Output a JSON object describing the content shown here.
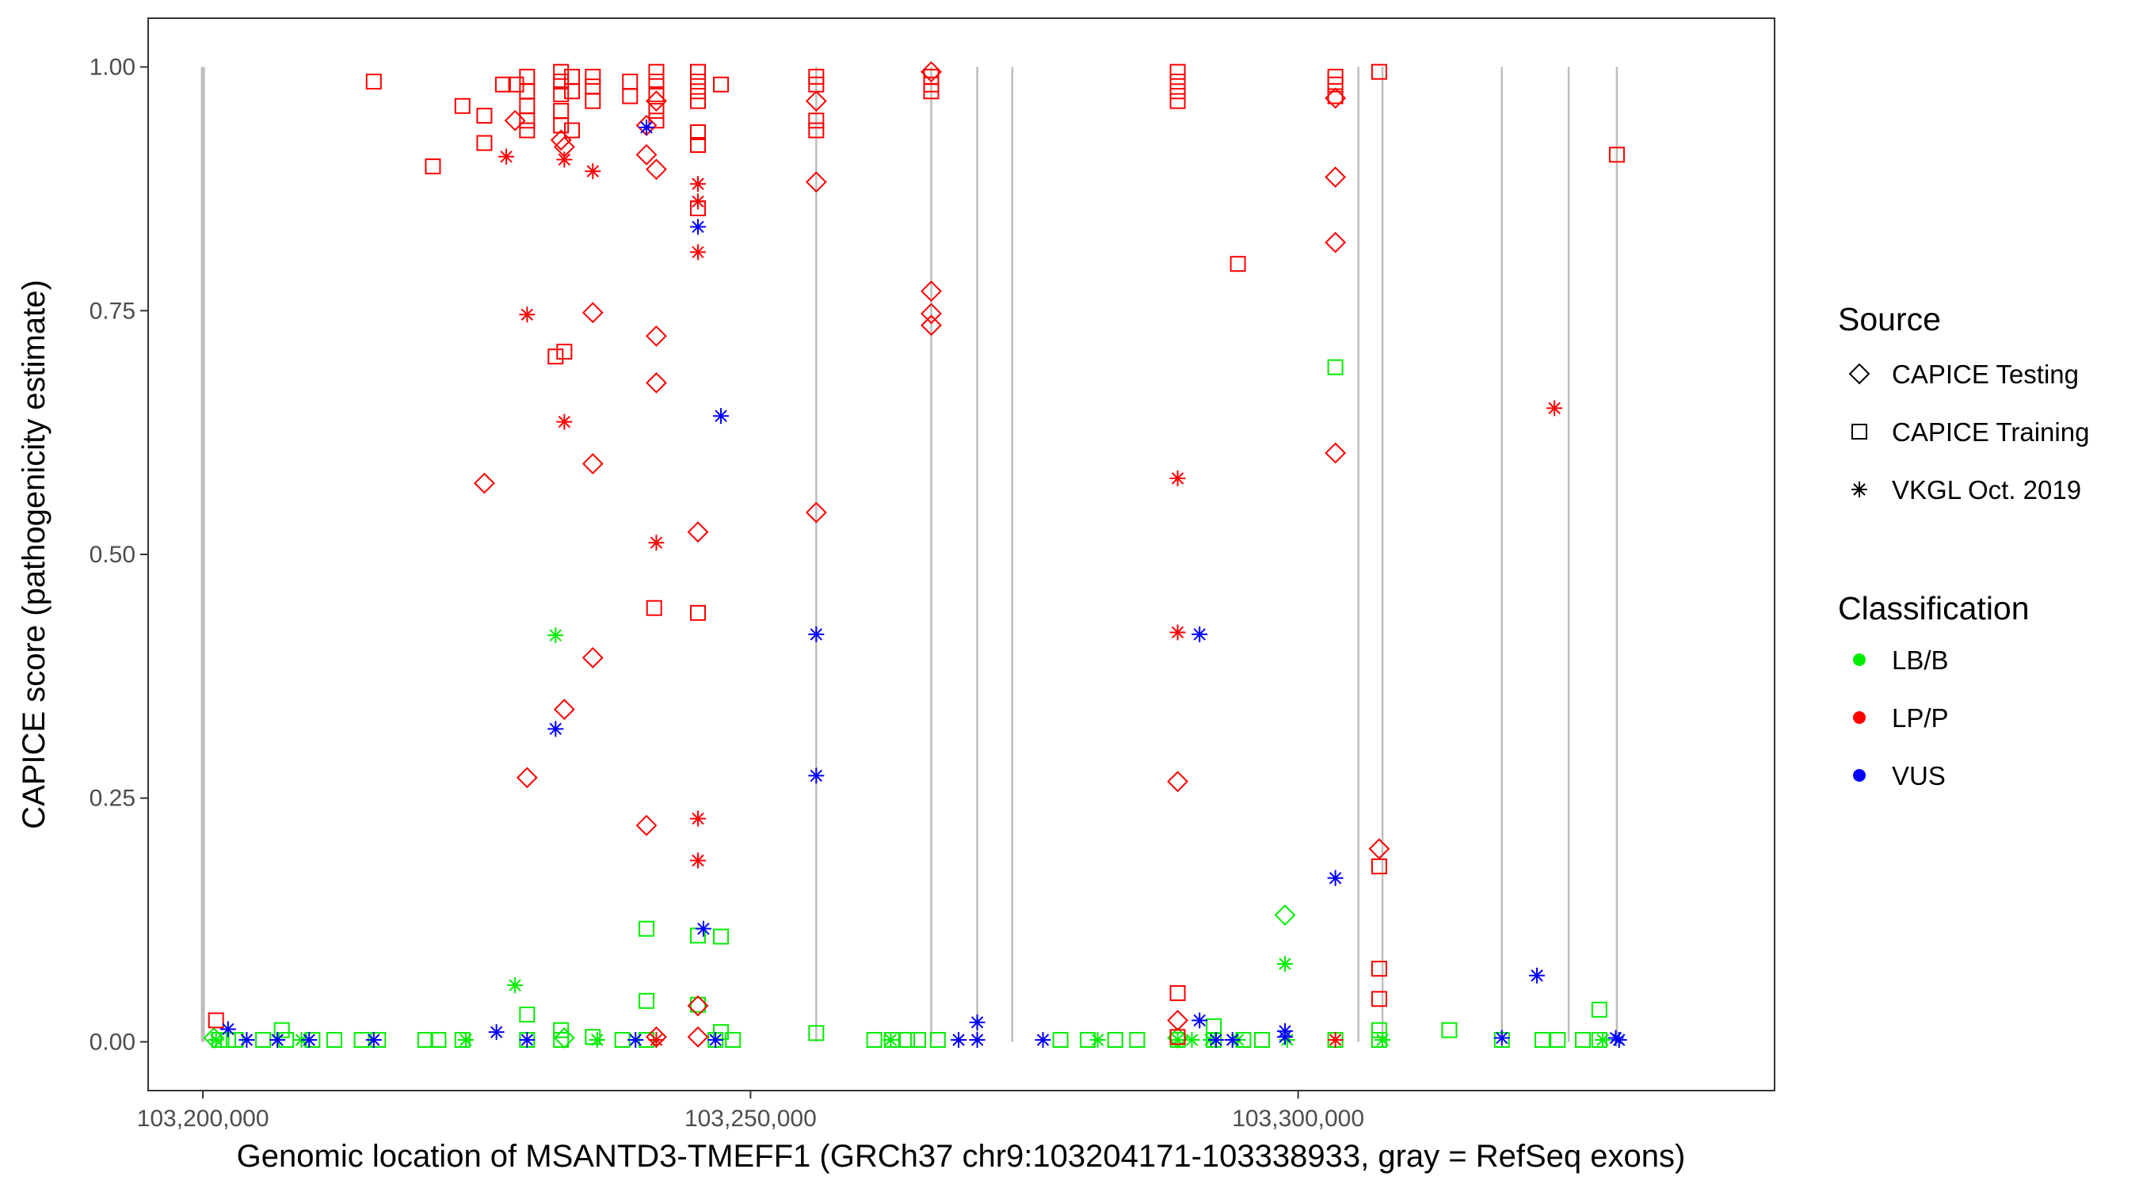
{
  "chart_data": {
    "type": "scatter",
    "title": "",
    "xlabel": "Genomic location of MSANTD3-TMEFF1 (GRCh37 chr9:103204171-103338933, gray = RefSeq exons)",
    "ylabel": "CAPICE score (pathogenicity estimate)",
    "xlim": [
      103195000,
      103343500
    ],
    "ylim": [
      -0.05,
      1.05
    ],
    "xticks": [
      103200000,
      103250000,
      103300000
    ],
    "xtick_labels": [
      "103,200,000",
      "103,250,000",
      "103,300,000"
    ],
    "yticks": [
      0,
      0.25,
      0.5,
      0.75,
      1.0
    ],
    "ytick_labels": [
      "0.00",
      "0.25",
      "0.50",
      "0.75",
      "1.00"
    ],
    "exons": [
      103200000,
      103256000,
      103266500,
      103270700,
      103273900,
      103305500,
      103307700,
      103318600,
      103324700,
      103329100
    ],
    "legend": {
      "source_title": "Source",
      "sources": [
        {
          "key": "testing",
          "label": "CAPICE Testing"
        },
        {
          "key": "training",
          "label": "CAPICE Training"
        },
        {
          "key": "vkgl",
          "label": "VKGL Oct. 2019"
        }
      ],
      "class_title": "Classification",
      "classes": [
        {
          "key": "LB",
          "label": "LB/B",
          "color": "#00ee00"
        },
        {
          "key": "LP",
          "label": "LP/P",
          "color": "#ff0000"
        },
        {
          "key": "VUS",
          "label": "VUS",
          "color": "#0000ff"
        }
      ]
    },
    "series": [
      {
        "source": "training",
        "class": "LP",
        "points": [
          [
            103215600,
            0.985
          ],
          [
            103221000,
            0.898
          ],
          [
            103223700,
            0.96
          ],
          [
            103225700,
            0.95
          ],
          [
            103225700,
            0.922
          ],
          [
            103227400,
            0.982
          ],
          [
            103229600,
            0.99
          ],
          [
            103229600,
            0.975
          ],
          [
            103229600,
            0.96
          ],
          [
            103229600,
            0.945
          ],
          [
            103229600,
            0.935
          ],
          [
            103228600,
            0.982
          ],
          [
            103232700,
            0.995
          ],
          [
            103232700,
            0.985
          ],
          [
            103232700,
            0.972
          ],
          [
            103232700,
            0.955
          ],
          [
            103232700,
            0.94
          ],
          [
            103233700,
            0.99
          ],
          [
            103233700,
            0.975
          ],
          [
            103233700,
            0.935
          ],
          [
            103232200,
            0.703
          ],
          [
            103233000,
            0.708
          ],
          [
            103235600,
            0.99
          ],
          [
            103235600,
            0.98
          ],
          [
            103235600,
            0.965
          ],
          [
            103239000,
            0.985
          ],
          [
            103239000,
            0.97
          ],
          [
            103241400,
            0.995
          ],
          [
            103241400,
            0.985
          ],
          [
            103241400,
            0.972
          ],
          [
            103241400,
            0.955
          ],
          [
            103241400,
            0.945
          ],
          [
            103245200,
            0.995
          ],
          [
            103245200,
            0.985
          ],
          [
            103245200,
            0.975
          ],
          [
            103245200,
            0.965
          ],
          [
            103245200,
            0.933
          ],
          [
            103245200,
            0.92
          ],
          [
            103245200,
            0.855
          ],
          [
            103247300,
            0.982
          ],
          [
            103241200,
            0.445
          ],
          [
            103245200,
            0.44
          ],
          [
            103256000,
            0.99
          ],
          [
            103256000,
            0.982
          ],
          [
            103256000,
            0.945
          ],
          [
            103256000,
            0.935
          ],
          [
            103266500,
            0.99
          ],
          [
            103266500,
            0.982
          ],
          [
            103266500,
            0.975
          ],
          [
            103289000,
            0.995
          ],
          [
            103289000,
            0.985
          ],
          [
            103289000,
            0.975
          ],
          [
            103289000,
            0.965
          ],
          [
            103294500,
            0.798
          ],
          [
            103289000,
            0.05
          ],
          [
            103289000,
            0.005
          ],
          [
            103303400,
            0.99
          ],
          [
            103303400,
            0.982
          ],
          [
            103303400,
            0.97
          ],
          [
            103307400,
            0.995
          ],
          [
            103307400,
            0.18
          ],
          [
            103307400,
            0.075
          ],
          [
            103307400,
            0.044
          ],
          [
            103329100,
            0.91
          ],
          [
            103201200,
            0.022
          ]
        ]
      },
      {
        "source": "testing",
        "class": "LP",
        "points": [
          [
            103228500,
            0.945
          ],
          [
            103232700,
            0.925
          ],
          [
            103233000,
            0.918
          ],
          [
            103240500,
            0.94
          ],
          [
            103240500,
            0.91
          ],
          [
            103241400,
            0.895
          ],
          [
            103241400,
            0.965
          ],
          [
            103256000,
            0.965
          ],
          [
            103256000,
            0.882
          ],
          [
            103266500,
            0.995
          ],
          [
            103266500,
            0.77
          ],
          [
            103266500,
            0.747
          ],
          [
            103266500,
            0.735
          ],
          [
            103235600,
            0.748
          ],
          [
            103241400,
            0.724
          ],
          [
            103241400,
            0.676
          ],
          [
            103225700,
            0.573
          ],
          [
            103235600,
            0.593
          ],
          [
            103245200,
            0.523
          ],
          [
            103256000,
            0.543
          ],
          [
            103235600,
            0.394
          ],
          [
            103233000,
            0.341
          ],
          [
            103229600,
            0.271
          ],
          [
            103240500,
            0.222
          ],
          [
            103245200,
            0.037
          ],
          [
            103245200,
            0.005
          ],
          [
            103289000,
            0.267
          ],
          [
            103289000,
            0.022
          ],
          [
            103303400,
            0.968
          ],
          [
            103303400,
            0.887
          ],
          [
            103303400,
            0.82
          ],
          [
            103303400,
            0.604
          ],
          [
            103307400,
            0.198
          ],
          [
            103241400,
            0.005
          ]
        ]
      },
      {
        "source": "vkgl",
        "class": "LP",
        "points": [
          [
            103227700,
            0.908
          ],
          [
            103233000,
            0.905
          ],
          [
            103235600,
            0.893
          ],
          [
            103229600,
            0.746
          ],
          [
            103233000,
            0.636
          ],
          [
            103245200,
            0.88
          ],
          [
            103245200,
            0.862
          ],
          [
            103245200,
            0.81
          ],
          [
            103241400,
            0.512
          ],
          [
            103245200,
            0.229
          ],
          [
            103245200,
            0.186
          ],
          [
            103289000,
            0.578
          ],
          [
            103289000,
            0.42
          ],
          [
            103323400,
            0.65
          ],
          [
            103303400,
            0.002
          ],
          [
            103241400,
            0.002
          ]
        ]
      },
      {
        "source": "training",
        "class": "LB",
        "points": [
          [
            103201500,
            0.002
          ],
          [
            103202300,
            0.002
          ],
          [
            103203000,
            0.002
          ],
          [
            103205500,
            0.002
          ],
          [
            103207600,
            0.002
          ],
          [
            103210000,
            0.002
          ],
          [
            103212000,
            0.002
          ],
          [
            103214500,
            0.002
          ],
          [
            103216000,
            0.002
          ],
          [
            103220300,
            0.002
          ],
          [
            103221500,
            0.002
          ],
          [
            103223700,
            0.002
          ],
          [
            103229600,
            0.028
          ],
          [
            103229600,
            0.002
          ],
          [
            103232700,
            0.012
          ],
          [
            103232700,
            0.002
          ],
          [
            103235600,
            0.005
          ],
          [
            103238300,
            0.002
          ],
          [
            103240500,
            0.116
          ],
          [
            103240500,
            0.042
          ],
          [
            103240500,
            0.002
          ],
          [
            103245200,
            0.109
          ],
          [
            103247300,
            0.108
          ],
          [
            103245200,
            0.038
          ],
          [
            103247300,
            0.01
          ],
          [
            103246800,
            0.002
          ],
          [
            103248400,
            0.002
          ],
          [
            103256000,
            0.009
          ],
          [
            103261300,
            0.002
          ],
          [
            103262900,
            0.002
          ],
          [
            103264300,
            0.002
          ],
          [
            103265300,
            0.002
          ],
          [
            103267100,
            0.002
          ],
          [
            103278300,
            0.002
          ],
          [
            103280800,
            0.002
          ],
          [
            103283300,
            0.002
          ],
          [
            103285300,
            0.002
          ],
          [
            103289000,
            0.002
          ],
          [
            103292300,
            0.016
          ],
          [
            103292300,
            0.002
          ],
          [
            103295000,
            0.002
          ],
          [
            103296700,
            0.002
          ],
          [
            103303400,
            0.692
          ],
          [
            103303400,
            0.002
          ],
          [
            103307400,
            0.012
          ],
          [
            103307400,
            0.002
          ],
          [
            103313800,
            0.012
          ],
          [
            103318600,
            0.002
          ],
          [
            103322300,
            0.002
          ],
          [
            103323700,
            0.002
          ],
          [
            103326000,
            0.002
          ],
          [
            103327500,
            0.033
          ],
          [
            103327500,
            0.002
          ],
          [
            103207200,
            0.012
          ]
        ]
      },
      {
        "source": "testing",
        "class": "LB",
        "points": [
          [
            103298800,
            0.13
          ],
          [
            103201000,
            0.004
          ],
          [
            103289000,
            0.004
          ],
          [
            103233000,
            0.004
          ]
        ]
      },
      {
        "source": "vkgl",
        "class": "LB",
        "points": [
          [
            103228500,
            0.058
          ],
          [
            103232200,
            0.417
          ],
          [
            103298800,
            0.08
          ],
          [
            103201200,
            0.002
          ],
          [
            103209000,
            0.002
          ],
          [
            103224000,
            0.002
          ],
          [
            103236000,
            0.002
          ],
          [
            103262800,
            0.002
          ],
          [
            103281700,
            0.002
          ],
          [
            103289000,
            0.002
          ],
          [
            103290300,
            0.002
          ],
          [
            103292000,
            0.002
          ],
          [
            103294500,
            0.002
          ],
          [
            103299000,
            0.002
          ],
          [
            103303400,
            0.002
          ],
          [
            103307700,
            0.002
          ],
          [
            103327800,
            0.002
          ],
          [
            103329300,
            0.002
          ]
        ]
      },
      {
        "source": "vkgl",
        "class": "VUS",
        "points": [
          [
            103202300,
            0.013
          ],
          [
            103204000,
            0.002
          ],
          [
            103206800,
            0.002
          ],
          [
            103209700,
            0.002
          ],
          [
            103215600,
            0.002
          ],
          [
            103226800,
            0.01
          ],
          [
            103229600,
            0.002
          ],
          [
            103232200,
            0.321
          ],
          [
            103239500,
            0.002
          ],
          [
            103240500,
            0.938
          ],
          [
            103245200,
            0.836
          ],
          [
            103246800,
            0.002
          ],
          [
            103247300,
            0.642
          ],
          [
            103245700,
            0.116
          ],
          [
            103256000,
            0.418
          ],
          [
            103256000,
            0.273
          ],
          [
            103270700,
            0.02
          ],
          [
            103270700,
            0.002
          ],
          [
            103269000,
            0.002
          ],
          [
            103276700,
            0.002
          ],
          [
            103291000,
            0.418
          ],
          [
            103291000,
            0.022
          ],
          [
            103292500,
            0.002
          ],
          [
            103294000,
            0.002
          ],
          [
            103298800,
            0.011
          ],
          [
            103298800,
            0.005
          ],
          [
            103303400,
            0.168
          ],
          [
            103321800,
            0.068
          ],
          [
            103318600,
            0.004
          ],
          [
            103329000,
            0.004
          ],
          [
            103329300,
            0.002
          ]
        ]
      }
    ]
  }
}
